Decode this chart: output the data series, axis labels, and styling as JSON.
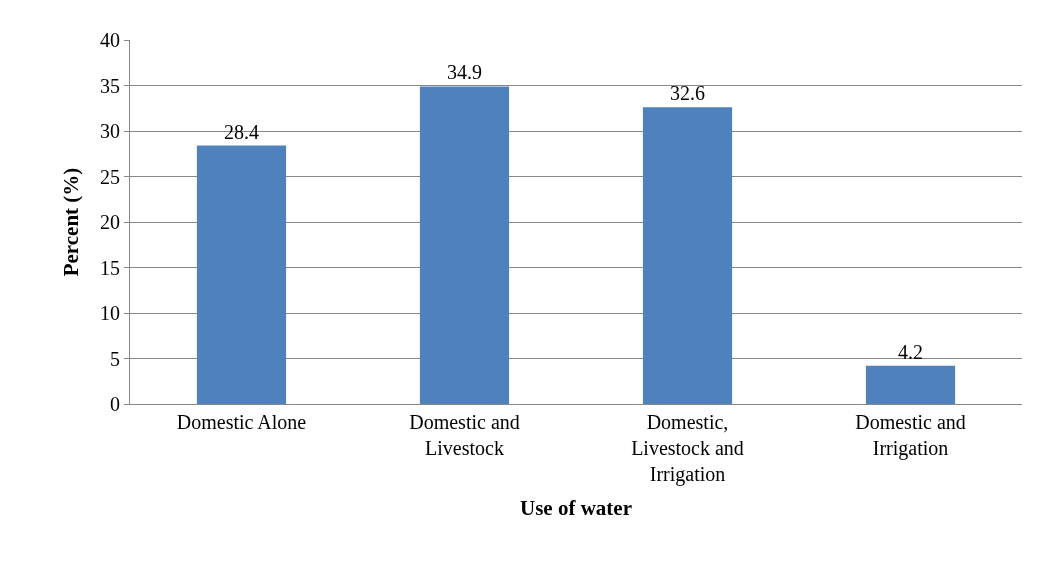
{
  "chart_data": {
    "type": "bar",
    "xlabel": "Use of water",
    "ylabel": "Percent (%)",
    "categories": [
      "Domestic Alone",
      "Domestic and Livestock",
      "Domestic, Livestock and Irrigation",
      "Domestic and Irrigation"
    ],
    "values": [
      28.4,
      34.9,
      32.6,
      4.2
    ],
    "color": "#4f81bd",
    "ylim": [
      0,
      40
    ],
    "yticks": [
      0,
      5,
      10,
      15,
      20,
      25,
      30,
      35,
      40
    ],
    "grid": "y",
    "data_labels": true
  }
}
